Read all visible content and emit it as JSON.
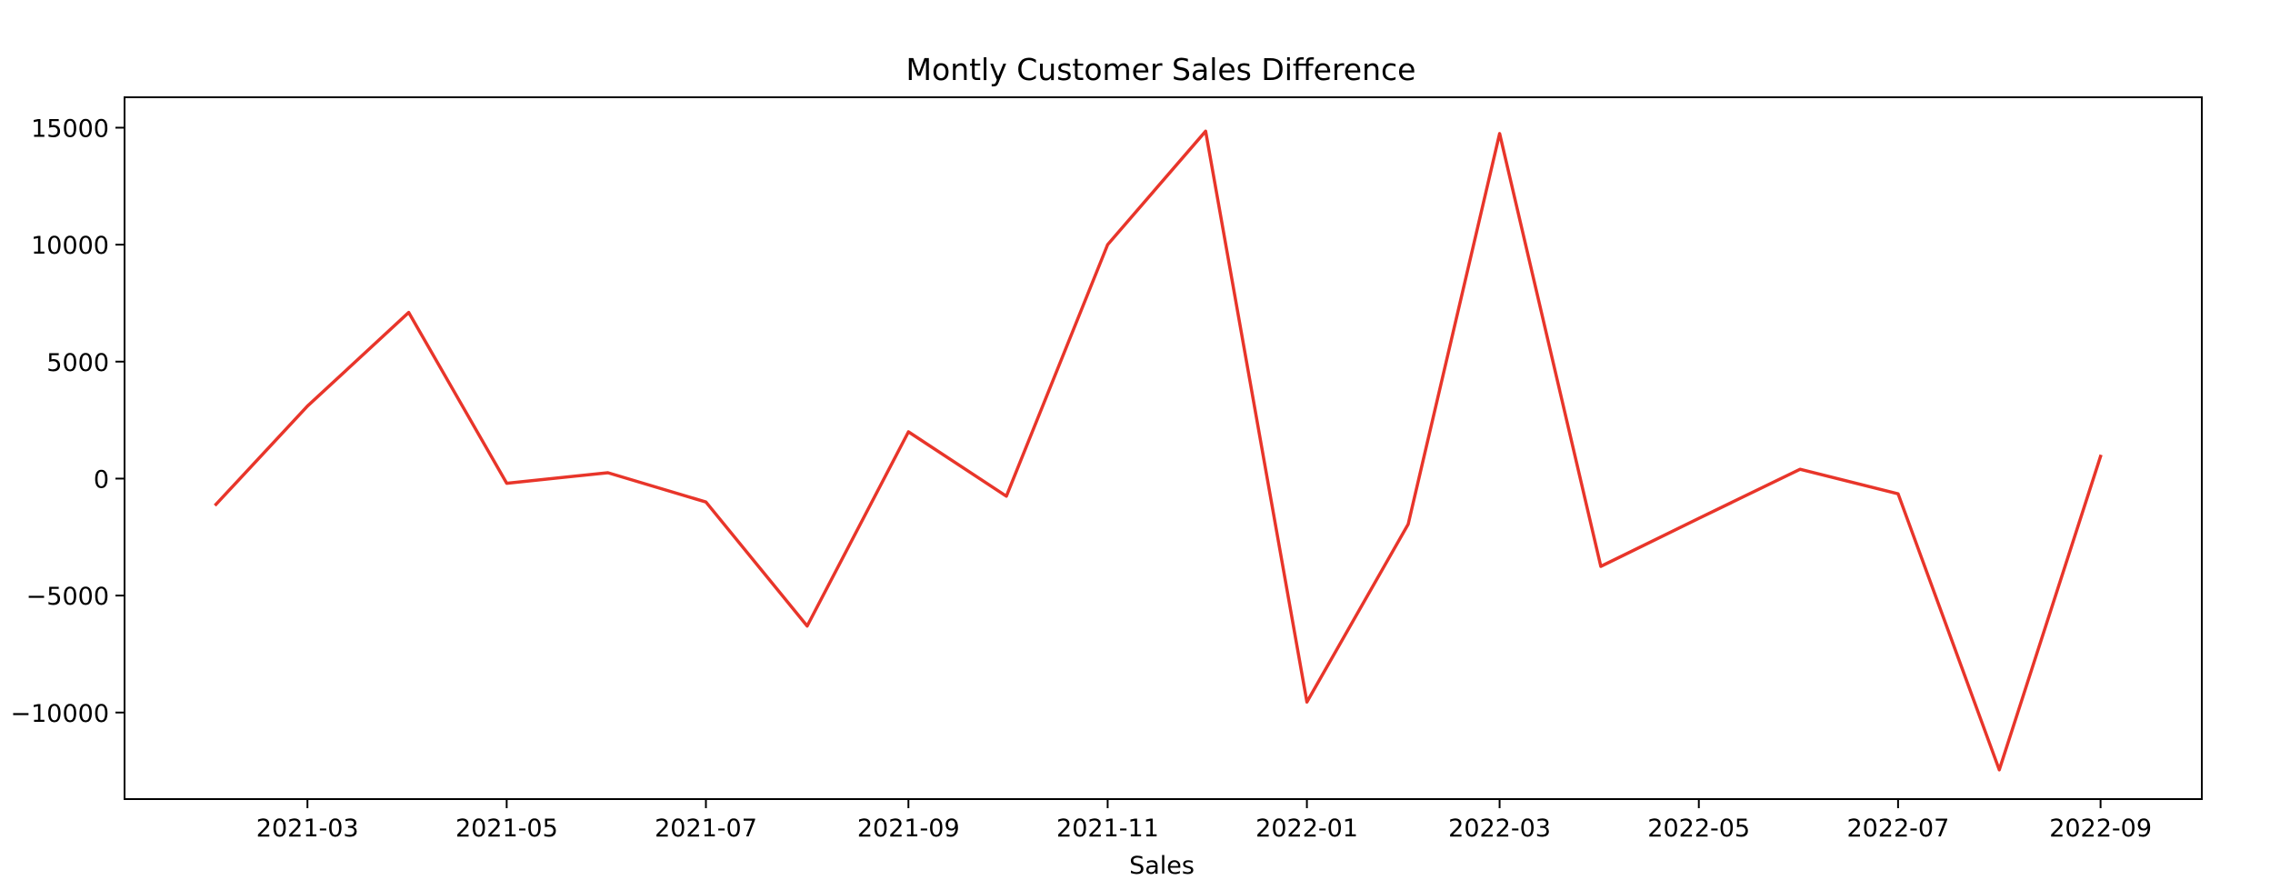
{
  "chart_data": {
    "type": "line",
    "title": "Montly Customer Sales Difference",
    "xlabel": "Sales",
    "ylabel": "",
    "x_ticks": [
      "2021-03",
      "2021-05",
      "2021-07",
      "2021-09",
      "2021-11",
      "2022-01",
      "2022-03",
      "2022-05",
      "2022-07",
      "2022-09"
    ],
    "y_ticks": [
      -10000,
      -5000,
      0,
      5000,
      10000,
      15000
    ],
    "ylim": [
      -13700,
      16300
    ],
    "xlim": [
      "2021-01-04",
      "2022-10-02"
    ],
    "grid": false,
    "series": [
      {
        "color": "#e8352a",
        "points": [
          {
            "x": "2021-02-01",
            "y": -1100
          },
          {
            "x": "2021-03-01",
            "y": 3100
          },
          {
            "x": "2021-04-01",
            "y": 7100
          },
          {
            "x": "2021-05-01",
            "y": -200
          },
          {
            "x": "2021-06-01",
            "y": 250
          },
          {
            "x": "2021-07-01",
            "y": -1000
          },
          {
            "x": "2021-08-01",
            "y": -6300
          },
          {
            "x": "2021-09-01",
            "y": 2000
          },
          {
            "x": "2021-10-01",
            "y": -750
          },
          {
            "x": "2021-11-01",
            "y": 10000
          },
          {
            "x": "2021-12-01",
            "y": 14850
          },
          {
            "x": "2022-01-01",
            "y": -9550
          },
          {
            "x": "2022-02-01",
            "y": -1950
          },
          {
            "x": "2022-03-01",
            "y": 14750
          },
          {
            "x": "2022-04-01",
            "y": -3750
          },
          {
            "x": "2022-05-01",
            "y": -1700
          },
          {
            "x": "2022-06-01",
            "y": 400
          },
          {
            "x": "2022-07-01",
            "y": -650
          },
          {
            "x": "2022-08-01",
            "y": -12450
          },
          {
            "x": "2022-09-01",
            "y": 950
          }
        ]
      }
    ]
  }
}
